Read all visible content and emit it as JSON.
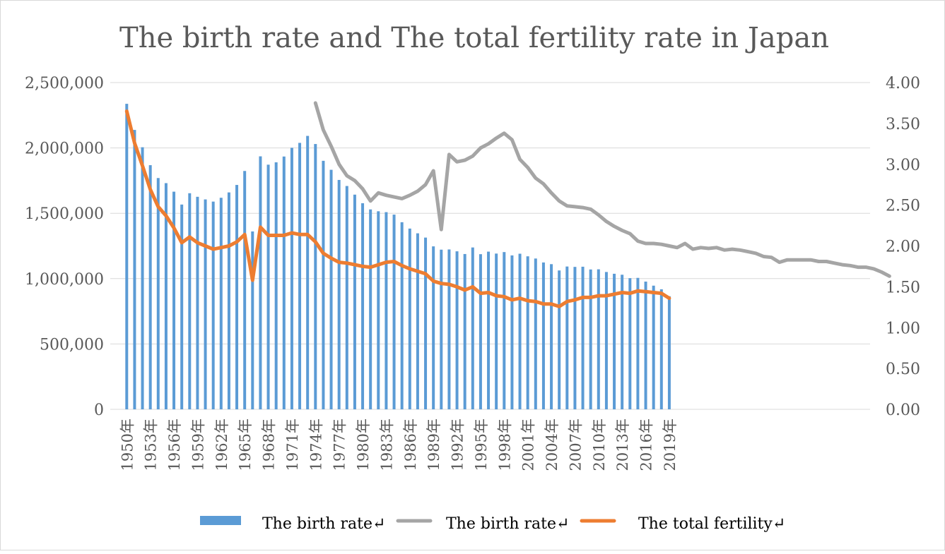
{
  "chart_data": {
    "type": "bar",
    "title": "The birth rate and The total fertility rate in Japan",
    "xlabel": "",
    "ylabel": "",
    "grid": true,
    "legend_position": "bottom",
    "y_left": {
      "ylim": [
        0,
        2500000
      ],
      "ticks": [
        "0",
        "500,000",
        "1,000,000",
        "1,500,000",
        "2,000,000",
        "2,500,000"
      ]
    },
    "y_right": {
      "ylim": [
        0,
        4
      ],
      "ticks": [
        "0.00",
        "0.50",
        "1.00",
        "1.50",
        "2.00",
        "2.50",
        "3.00",
        "3.50",
        "4.00"
      ]
    },
    "x_labels": [
      "1950年",
      "1953年",
      "1956年",
      "1959年",
      "1962年",
      "1965年",
      "1968年",
      "1971年",
      "1974年",
      "1977年",
      "1980年",
      "1983年",
      "1986年",
      "1989年",
      "1992年",
      "1995年",
      "1998年",
      "2001年",
      "2004年",
      "2007年",
      "2010年",
      "2013年",
      "2016年",
      "2019年"
    ],
    "years": [
      1950,
      1951,
      1952,
      1953,
      1954,
      1955,
      1956,
      1957,
      1958,
      1959,
      1960,
      1961,
      1962,
      1963,
      1964,
      1965,
      1966,
      1967,
      1968,
      1969,
      1970,
      1971,
      1972,
      1973,
      1974,
      1975,
      1976,
      1977,
      1978,
      1979,
      1980,
      1981,
      1982,
      1983,
      1984,
      1985,
      1986,
      1987,
      1988,
      1989,
      1990,
      1991,
      1992,
      1993,
      1994,
      1995,
      1996,
      1997,
      1998,
      1999,
      2000,
      2001,
      2002,
      2003,
      2004,
      2005,
      2006,
      2007,
      2008,
      2009,
      2010,
      2011,
      2012,
      2013,
      2014,
      2015,
      2016,
      2017,
      2018,
      2019
    ],
    "series": [
      {
        "name": "The birth rate",
        "kind": "bar",
        "axis": "left",
        "color": "#5b9bd5",
        "values": [
          2337507,
          2137689,
          2005162,
          1868040,
          1769580,
          1730692,
          1665278,
          1566713,
          1653469,
          1626088,
          1606041,
          1589372,
          1618616,
          1659521,
          1716761,
          1823697,
          1360974,
          1935647,
          1871839,
          1889815,
          1934239,
          2000973,
          2038682,
          2091983,
          2029989,
          1901440,
          1832617,
          1755100,
          1708643,
          1642580,
          1576889,
          1529455,
          1515392,
          1508687,
          1489780,
          1431577,
          1382946,
          1346658,
          1314006,
          1246802,
          1221585,
          1223245,
          1208989,
          1188282,
          1238328,
          1187064,
          1206555,
          1191665,
          1203147,
          1177669,
          1190547,
          1170662,
          1153855,
          1123610,
          1110721,
          1062530,
          1092674,
          1089818,
          1091156,
          1070036,
          1071304,
          1050806,
          1037231,
          1029816,
          1003609,
          1005721,
          977242,
          946146,
          918400,
          865239
        ]
      },
      {
        "name": "The birth rate",
        "kind": "line",
        "axis": "right",
        "color": "#a5a5a5",
        "x": [
          1974,
          1975,
          1976,
          1977,
          1978,
          1979,
          1980,
          1981,
          1982,
          1983,
          1984,
          1985,
          1986,
          1987,
          1988,
          1989,
          1990,
          1991,
          1992,
          1993,
          1994,
          1995,
          1996,
          1997,
          1998,
          1999,
          2000,
          2001,
          2002,
          2003,
          2004,
          2005,
          2006,
          2007,
          2008,
          2009,
          2010,
          2011,
          2012,
          2013,
          2014,
          2015,
          2016,
          2017,
          2018,
          2019,
          2020,
          2021,
          2022,
          2023,
          2024,
          2025,
          2026,
          2027,
          2028,
          2029,
          2030,
          2031,
          2032,
          2033,
          2034,
          2035,
          2036,
          2037,
          2038,
          2039,
          2040,
          2041,
          2042,
          2043,
          2044,
          2045,
          2046,
          2047
        ],
        "values": [
          3.75,
          3.42,
          3.22,
          3.0,
          2.86,
          2.8,
          2.7,
          2.55,
          2.65,
          2.62,
          2.6,
          2.58,
          2.62,
          2.67,
          2.75,
          2.92,
          2.2,
          3.12,
          3.03,
          3.05,
          3.1,
          3.2,
          3.25,
          3.32,
          3.38,
          3.3,
          3.06,
          2.96,
          2.83,
          2.76,
          2.65,
          2.55,
          2.49,
          2.48,
          2.47,
          2.45,
          2.38,
          2.3,
          2.24,
          2.19,
          2.15,
          2.06,
          2.03,
          2.03,
          2.02,
          2.0,
          1.98,
          2.03,
          1.96,
          1.98,
          1.97,
          1.98,
          1.95,
          1.96,
          1.95,
          1.93,
          1.91,
          1.87,
          1.86,
          1.8,
          1.83,
          1.83,
          1.83,
          1.83,
          1.81,
          1.81,
          1.79,
          1.77,
          1.76,
          1.74,
          1.74,
          1.72,
          1.68,
          1.63
        ]
      },
      {
        "name": "The total fertility",
        "kind": "line",
        "axis": "right",
        "color": "#ed7d31",
        "x": [
          1950,
          1951,
          1952,
          1953,
          1954,
          1955,
          1956,
          1957,
          1958,
          1959,
          1960,
          1961,
          1962,
          1963,
          1964,
          1965,
          1966,
          1967,
          1968,
          1969,
          1970,
          1971,
          1972,
          1973,
          1974,
          1975,
          1976,
          1977,
          1978,
          1979,
          1980,
          1981,
          1982,
          1983,
          1984,
          1985,
          1986,
          1987,
          1988,
          1989,
          1990,
          1991,
          1992,
          1993,
          1994,
          1995,
          1996,
          1997,
          1998,
          1999,
          2000,
          2001,
          2002,
          2003,
          2004,
          2005,
          2006,
          2007,
          2008,
          2009,
          2010,
          2011,
          2012,
          2013,
          2014,
          2015,
          2016,
          2017,
          2018,
          2019
        ],
        "values": [
          3.65,
          3.26,
          2.98,
          2.69,
          2.48,
          2.37,
          2.22,
          2.04,
          2.11,
          2.04,
          2.0,
          1.96,
          1.98,
          2.0,
          2.05,
          2.14,
          1.58,
          2.23,
          2.13,
          2.13,
          2.13,
          2.16,
          2.14,
          2.14,
          2.05,
          1.91,
          1.85,
          1.8,
          1.79,
          1.77,
          1.75,
          1.74,
          1.77,
          1.8,
          1.81,
          1.76,
          1.72,
          1.69,
          1.66,
          1.57,
          1.54,
          1.53,
          1.5,
          1.46,
          1.5,
          1.42,
          1.43,
          1.39,
          1.38,
          1.34,
          1.36,
          1.33,
          1.32,
          1.29,
          1.29,
          1.26,
          1.32,
          1.34,
          1.37,
          1.37,
          1.39,
          1.39,
          1.41,
          1.43,
          1.42,
          1.45,
          1.44,
          1.43,
          1.42,
          1.36
        ]
      }
    ],
    "legend": [
      {
        "label": "The birth rate↵",
        "color": "#5b9bd5",
        "kind": "bar"
      },
      {
        "label": "The birth rate↵",
        "color": "#a5a5a5",
        "kind": "line"
      },
      {
        "label": "The total fertility↵",
        "color": "#ed7d31",
        "kind": "line"
      }
    ]
  }
}
